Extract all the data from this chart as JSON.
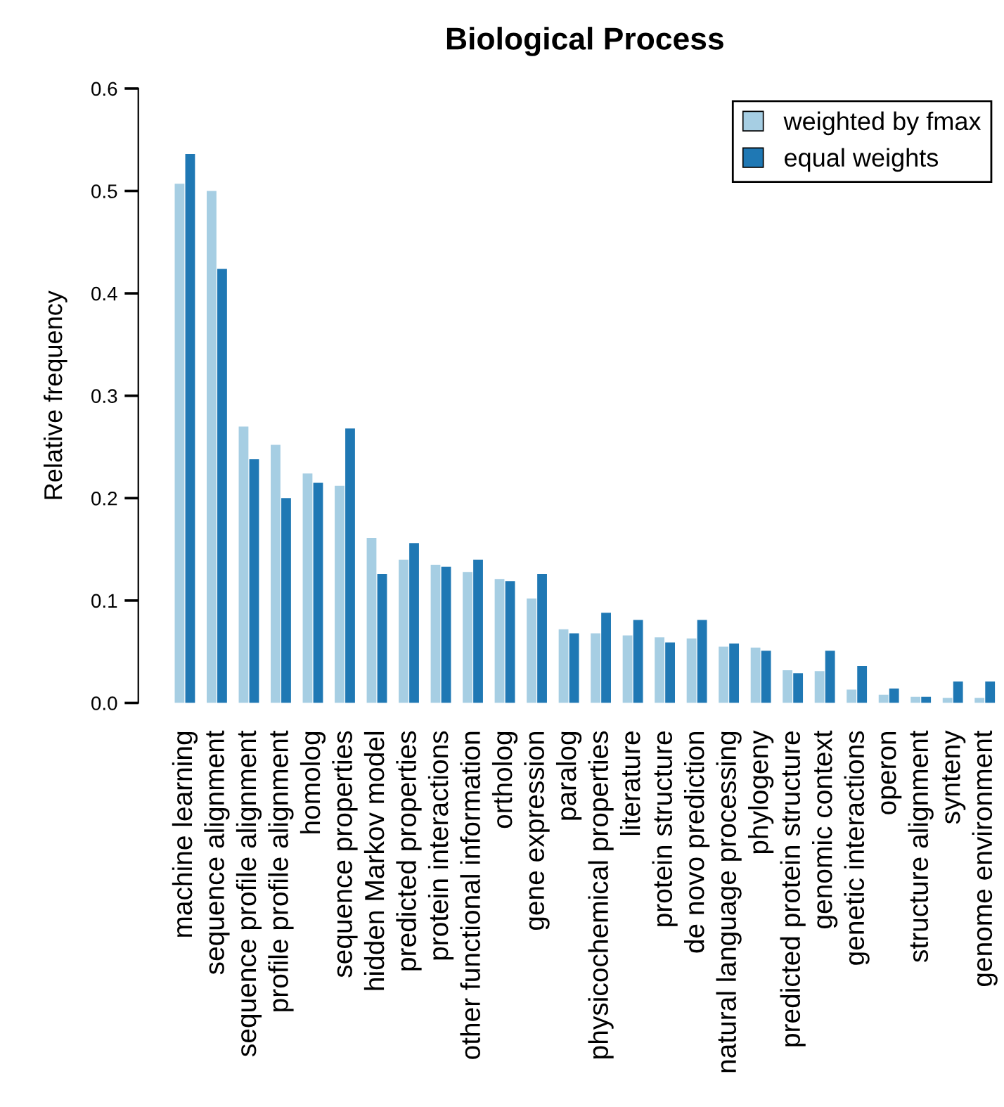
{
  "chart_data": {
    "type": "bar",
    "title": "Biological Process",
    "ylabel": "Relative frequency",
    "categories": [
      "machine learning",
      "sequence alignment",
      "sequence profile alignment",
      "profile profile alignment",
      "homolog",
      "sequence properties",
      "hidden Markov model",
      "predicted properties",
      "protein interactions",
      "other functional information",
      "ortholog",
      "gene expression",
      "paralog",
      "physicochemical properties",
      "literature",
      "protein structure",
      "de novo prediction",
      "natural language processing",
      "phylogeny",
      "predicted protein structure",
      "genomic context",
      "genetic interactions",
      "operon",
      "structure alignment",
      "synteny",
      "genome environment"
    ],
    "series": [
      {
        "name": "weighted by fmax",
        "color": "#a6cee3",
        "values": [
          0.507,
          0.5,
          0.27,
          0.252,
          0.224,
          0.212,
          0.161,
          0.14,
          0.135,
          0.128,
          0.121,
          0.102,
          0.072,
          0.068,
          0.066,
          0.064,
          0.063,
          0.055,
          0.054,
          0.032,
          0.031,
          0.013,
          0.008,
          0.006,
          0.005,
          0.005
        ]
      },
      {
        "name": "equal weights",
        "color": "#1f78b4",
        "values": [
          0.536,
          0.424,
          0.238,
          0.2,
          0.215,
          0.268,
          0.126,
          0.156,
          0.133,
          0.14,
          0.119,
          0.126,
          0.068,
          0.088,
          0.081,
          0.059,
          0.081,
          0.058,
          0.051,
          0.029,
          0.051,
          0.036,
          0.014,
          0.006,
          0.021,
          0.021
        ]
      }
    ],
    "ylim": [
      0,
      0.6
    ],
    "yticks": [
      {
        "value": 0,
        "label": "0.0"
      },
      0.1,
      0.2,
      0.3,
      0.4,
      0.5,
      0.6
    ],
    "grid": false,
    "legend": "top right"
  }
}
